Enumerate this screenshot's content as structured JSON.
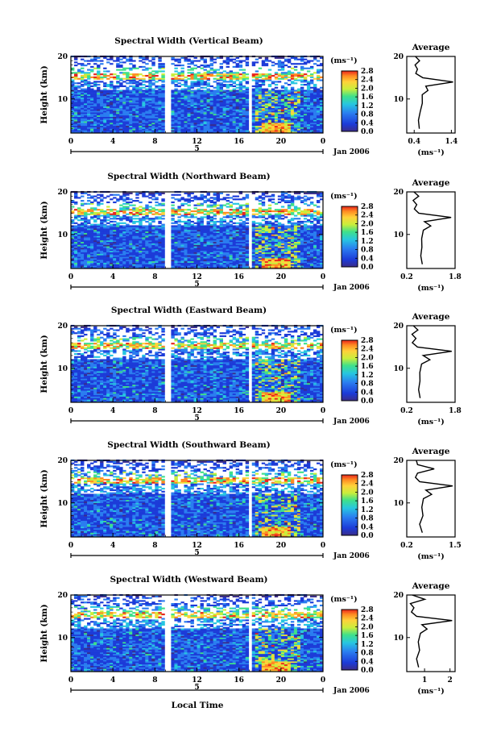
{
  "figure": {
    "x_axis_title": "Local Time",
    "date_label": "Jan 2006",
    "day_marker": "5",
    "average_title": "Average",
    "colorbar_unit": "(ms⁻¹)",
    "avg_xlabel": "(ms⁻¹)"
  },
  "chart_data": [
    {
      "type": "heatmap",
      "title": "Spectral Width (Vertical Beam)",
      "ylabel": "Height (km)",
      "xlabel": "Local Time",
      "x_ticks": [
        "0",
        "4",
        "8",
        "12",
        "16",
        "20",
        "0"
      ],
      "x_range": [
        0,
        24
      ],
      "y_ticks": [
        "10",
        "20"
      ],
      "y_range": [
        2,
        20
      ],
      "colorbar": {
        "label": "(ms⁻¹)",
        "ticks": [
          "0.0",
          "0.4",
          "0.8",
          "1.2",
          "1.6",
          "2.0",
          "2.4",
          "2.8"
        ],
        "range": [
          0,
          2.8
        ]
      },
      "data_gaps_hours": [
        [
          9,
          9.4
        ],
        [
          16.8,
          17.2
        ]
      ],
      "average_profile": {
        "title": "Average",
        "xlabel": "(ms⁻¹)",
        "x_ticks": [
          "0.4",
          "1.4"
        ],
        "x_range": [
          0.2,
          1.5
        ],
        "y_ticks": [
          "10",
          "20"
        ],
        "height_km": [
          3,
          5,
          7,
          9,
          11,
          12,
          13,
          14,
          15,
          16,
          17,
          18,
          19,
          20
        ],
        "width_ms": [
          0.55,
          0.5,
          0.55,
          0.6,
          0.62,
          0.75,
          0.7,
          1.45,
          0.65,
          0.45,
          0.5,
          0.42,
          0.55,
          0.45
        ]
      }
    },
    {
      "type": "heatmap",
      "title": "Spectral Width (Northward Beam)",
      "ylabel": "Height (km)",
      "xlabel": "Local Time",
      "x_ticks": [
        "0",
        "4",
        "8",
        "12",
        "16",
        "20",
        "0"
      ],
      "x_range": [
        0,
        24
      ],
      "y_ticks": [
        "10",
        "20"
      ],
      "y_range": [
        2,
        20
      ],
      "colorbar": {
        "label": "(ms⁻¹)",
        "ticks": [
          "0.0",
          "0.4",
          "0.8",
          "1.2",
          "1.6",
          "2.0",
          "2.4",
          "2.8"
        ],
        "range": [
          0,
          2.8
        ]
      },
      "data_gaps_hours": [
        [
          9,
          9.4
        ],
        [
          16.8,
          17.2
        ]
      ],
      "average_profile": {
        "title": "Average",
        "xlabel": "(ms⁻¹)",
        "x_ticks": [
          "0.2",
          "1.8"
        ],
        "x_range": [
          0.2,
          1.8
        ],
        "y_ticks": [
          "10",
          "20"
        ],
        "height_km": [
          3,
          5,
          7,
          9,
          11,
          12,
          13,
          14,
          15,
          16,
          17,
          18,
          19,
          20
        ],
        "width_ms": [
          0.7,
          0.65,
          0.72,
          0.7,
          0.75,
          1.0,
          0.8,
          1.65,
          0.6,
          0.45,
          0.55,
          0.4,
          0.6,
          0.45
        ]
      }
    },
    {
      "type": "heatmap",
      "title": "Spectral Width (Eastward Beam)",
      "ylabel": "Height (km)",
      "xlabel": "Local Time",
      "x_ticks": [
        "0",
        "4",
        "8",
        "12",
        "16",
        "20",
        "0"
      ],
      "x_range": [
        0,
        24
      ],
      "y_ticks": [
        "10",
        "20"
      ],
      "y_range": [
        2,
        20
      ],
      "colorbar": {
        "label": "(ms⁻¹)",
        "ticks": [
          "0.0",
          "0.4",
          "0.8",
          "1.2",
          "1.6",
          "2.0",
          "2.4",
          "2.8"
        ],
        "range": [
          0,
          2.8
        ]
      },
      "data_gaps_hours": [
        [
          9,
          9.4
        ],
        [
          16.8,
          17.2
        ]
      ],
      "average_profile": {
        "title": "Average",
        "xlabel": "(ms⁻¹)",
        "x_ticks": [
          "0.2",
          "1.8"
        ],
        "x_range": [
          0.2,
          1.8
        ],
        "y_ticks": [
          "10",
          "20"
        ],
        "height_km": [
          3,
          5,
          7,
          9,
          11,
          12,
          13,
          14,
          15,
          16,
          17,
          18,
          19,
          20
        ],
        "width_ms": [
          0.65,
          0.6,
          0.65,
          0.62,
          0.7,
          0.95,
          0.75,
          1.7,
          0.55,
          0.4,
          0.5,
          0.38,
          0.55,
          0.42
        ]
      }
    },
    {
      "type": "heatmap",
      "title": "Spectral Width (Southward Beam)",
      "ylabel": "Height (km)",
      "xlabel": "Local Time",
      "x_ticks": [
        "0",
        "4",
        "8",
        "12",
        "16",
        "20",
        "0"
      ],
      "x_range": [
        0,
        24
      ],
      "y_ticks": [
        "10",
        "20"
      ],
      "y_range": [
        2,
        20
      ],
      "colorbar": {
        "label": "(ms⁻¹)",
        "ticks": [
          "0.0",
          "0.4",
          "0.8",
          "1.2",
          "1.6",
          "2.0",
          "2.4",
          "2.8"
        ],
        "range": [
          0,
          2.8
        ]
      },
      "data_gaps_hours": [
        [
          9,
          9.4
        ],
        [
          16.8,
          17.2
        ]
      ],
      "average_profile": {
        "title": "Average",
        "xlabel": "(ms⁻¹)",
        "x_ticks": [
          "0.2",
          "1.5"
        ],
        "x_range": [
          0.2,
          1.5
        ],
        "y_ticks": [
          "10",
          "20"
        ],
        "height_km": [
          3,
          5,
          7,
          9,
          11,
          12,
          13,
          14,
          15,
          16,
          17,
          18,
          19,
          20
        ],
        "width_ms": [
          0.6,
          0.55,
          0.62,
          0.6,
          0.65,
          0.85,
          0.7,
          1.45,
          0.55,
          0.42,
          0.5,
          0.95,
          0.5,
          0.45
        ]
      }
    },
    {
      "type": "heatmap",
      "title": "Spectral Width (Westward Beam)",
      "ylabel": "Height (km)",
      "xlabel": "Local Time",
      "x_ticks": [
        "0",
        "4",
        "8",
        "12",
        "16",
        "20",
        "0"
      ],
      "x_range": [
        0,
        24
      ],
      "y_ticks": [
        "10",
        "20"
      ],
      "y_range": [
        2,
        20
      ],
      "colorbar": {
        "label": "(ms⁻¹)",
        "ticks": [
          "0.0",
          "0.4",
          "0.8",
          "1.2",
          "1.6",
          "2.0",
          "2.4",
          "2.8"
        ],
        "range": [
          0,
          2.8
        ]
      },
      "data_gaps_hours": [
        [
          9,
          9.4
        ],
        [
          16.8,
          17.2
        ]
      ],
      "average_profile": {
        "title": "Average",
        "xlabel": "(ms⁻¹)",
        "x_ticks": [
          "1",
          "2"
        ],
        "x_range": [
          0.3,
          2.2
        ],
        "y_ticks": [
          "10",
          "20"
        ],
        "height_km": [
          3,
          5,
          7,
          9,
          11,
          12,
          13,
          14,
          15,
          16,
          17,
          18,
          19,
          20
        ],
        "width_ms": [
          0.75,
          0.7,
          0.8,
          0.75,
          0.85,
          1.1,
          0.9,
          2.1,
          0.7,
          0.5,
          0.6,
          0.45,
          1.0,
          0.5
        ]
      }
    }
  ]
}
